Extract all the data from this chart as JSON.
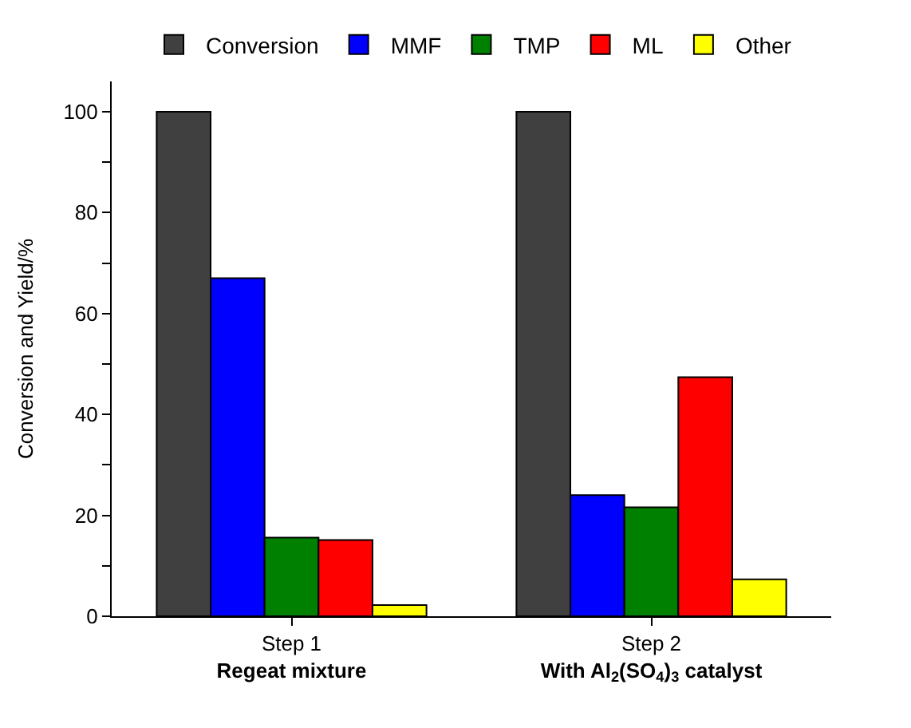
{
  "chart_data": {
    "type": "bar",
    "ylabel": "Conversion and Yield/%",
    "categories": [
      "Step 1\nRegeat mixture",
      "Step 2\nWith Al$_{2}$(SO$_{4}$)$_{3}$ catalyst"
    ],
    "series": [
      {
        "name": "Conversion",
        "color": "#404040",
        "values": [
          100,
          100
        ]
      },
      {
        "name": "MMF",
        "color": "#0000ff",
        "values": [
          67.0,
          24.0
        ]
      },
      {
        "name": "TMP",
        "color": "#008000",
        "values": [
          15.6,
          21.6
        ]
      },
      {
        "name": "ML",
        "color": "#ff0000",
        "values": [
          15.1,
          47.4
        ]
      },
      {
        "name": "Other",
        "color": "#ffff00",
        "values": [
          2.2,
          7.3
        ]
      }
    ],
    "ylim": [
      0,
      106
    ],
    "yticks": [
      0,
      {
        "value": 10,
        "label": null
      },
      20,
      {
        "value": 30,
        "label": null
      },
      40,
      {
        "value": 50,
        "label": null
      },
      60,
      {
        "value": 70,
        "label": null
      },
      80,
      {
        "value": 90,
        "label": null
      },
      100
    ],
    "legend": "top"
  }
}
